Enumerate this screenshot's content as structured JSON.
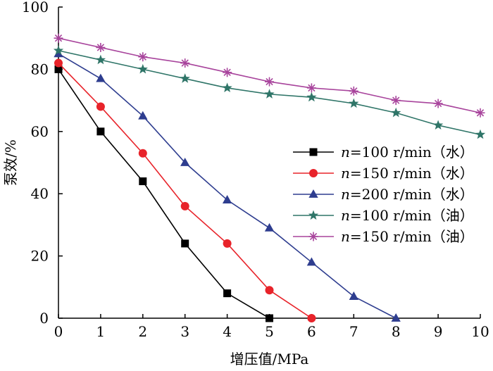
{
  "chart_data": {
    "type": "line",
    "title": "",
    "xlabel": "增压值/MPa",
    "ylabel": "泵效/%",
    "xlim": [
      0,
      10
    ],
    "ylim": [
      0,
      100
    ],
    "xticks": [
      "0",
      "1",
      "2",
      "3",
      "4",
      "5",
      "6",
      "7",
      "8",
      "9",
      "10"
    ],
    "yticks": [
      "0",
      "20",
      "40",
      "60",
      "80",
      "100"
    ],
    "grid": false,
    "legend_position": "right-middle",
    "series": [
      {
        "name": "n=100 r/min（水）",
        "name_var": "n",
        "name_rest": "=100 r/min（水）",
        "color": "#000000",
        "marker": "square",
        "x": [
          0,
          1,
          2,
          3,
          4,
          5
        ],
        "values": [
          80,
          60,
          44,
          24,
          8,
          0
        ]
      },
      {
        "name": "n=150 r/min（水）",
        "name_var": "n",
        "name_rest": "=150 r/min（水）",
        "color": "#e8232a",
        "marker": "circle",
        "x": [
          0,
          1,
          2,
          3,
          4,
          5,
          6
        ],
        "values": [
          82,
          68,
          53,
          36,
          24,
          9,
          0
        ]
      },
      {
        "name": "n=200 r/min（水）",
        "name_var": "n",
        "name_rest": "=200 r/min（水）",
        "color": "#2e3d8f",
        "marker": "triangle",
        "x": [
          0,
          1,
          2,
          3,
          4,
          5,
          6,
          7,
          8
        ],
        "values": [
          85,
          77,
          65,
          50,
          38,
          29,
          18,
          7,
          0
        ]
      },
      {
        "name": "n=100 r/min（油）",
        "name_var": "n",
        "name_rest": "=100 r/min（油）",
        "color": "#2f7568",
        "marker": "star",
        "x": [
          0,
          1,
          2,
          3,
          4,
          5,
          6,
          7,
          8,
          9,
          10
        ],
        "values": [
          86,
          83,
          80,
          77,
          74,
          72,
          71,
          69,
          66,
          62,
          59
        ]
      },
      {
        "name": "n=150 r/min（油）",
        "name_var": "n",
        "name_rest": "=150 r/min（油）",
        "color": "#a8449c",
        "marker": "asterisk",
        "x": [
          0,
          1,
          2,
          3,
          4,
          5,
          6,
          7,
          8,
          9,
          10
        ],
        "values": [
          90,
          87,
          84,
          82,
          79,
          76,
          74,
          73,
          70,
          69,
          66
        ]
      }
    ]
  }
}
